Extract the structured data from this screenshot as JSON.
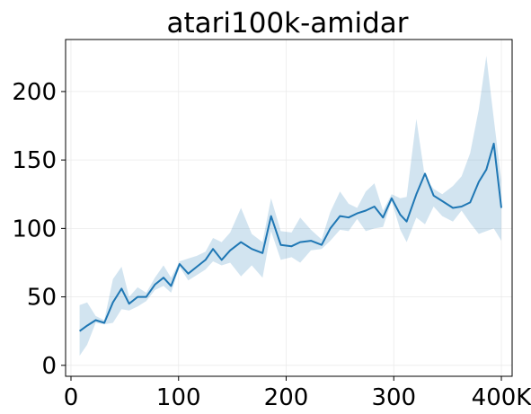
{
  "chart_data": {
    "type": "line",
    "title": "atari100k-amidar",
    "xlabel": "",
    "ylabel": "",
    "xlim": [
      -5,
      410
    ],
    "ylim": [
      -8,
      238
    ],
    "grid": true,
    "legend": "none",
    "x_ticks": [
      0,
      100,
      200,
      300,
      400
    ],
    "x_tick_labels": [
      "0",
      "100",
      "200",
      "300",
      "400K"
    ],
    "y_ticks": [
      0,
      50,
      100,
      150,
      200
    ],
    "y_tick_labels": [
      "0",
      "50",
      "100",
      "150",
      "200"
    ],
    "color": "#1f77b4",
    "x": [
      8,
      15,
      23,
      31,
      39,
      47,
      54,
      62,
      70,
      78,
      86,
      93,
      101,
      109,
      117,
      125,
      132,
      140,
      148,
      158,
      168,
      178,
      186,
      195,
      205,
      213,
      223,
      233,
      241,
      250,
      258,
      266,
      274,
      282,
      290,
      298,
      306,
      312,
      321,
      329,
      337,
      345,
      355,
      363,
      371,
      379,
      386,
      393,
      400
    ],
    "series": [
      {
        "mean": [
          25,
          29,
          33,
          31,
          46,
          56,
          45,
          50,
          50,
          59,
          64,
          58,
          74,
          67,
          72,
          77,
          85,
          77,
          84,
          90,
          85,
          82,
          109,
          88,
          87,
          90,
          91,
          88,
          100,
          109,
          108,
          111,
          113,
          116,
          108,
          122,
          110,
          105,
          125,
          140,
          124,
          120,
          115,
          116,
          119,
          134,
          143,
          162,
          115
        ],
        "upper": [
          44,
          46,
          36,
          33,
          63,
          72,
          50,
          57,
          53,
          64,
          73,
          64,
          76,
          78,
          80,
          83,
          93,
          90,
          97,
          115,
          96,
          90,
          122,
          98,
          97,
          108,
          99,
          92,
          112,
          127,
          118,
          115,
          127,
          133,
          113,
          125,
          122,
          123,
          180,
          137,
          129,
          125,
          131,
          138,
          155,
          187,
          226,
          180,
          135
        ],
        "lower": [
          7,
          15,
          31,
          30,
          31,
          41,
          40,
          43,
          47,
          55,
          58,
          53,
          72,
          62,
          66,
          70,
          76,
          73,
          75,
          65,
          73,
          64,
          98,
          77,
          79,
          75,
          84,
          85,
          91,
          99,
          98,
          107,
          98,
          100,
          101,
          120,
          99,
          90,
          108,
          103,
          116,
          109,
          105,
          113,
          104,
          96,
          98,
          100,
          91
        ]
      }
    ]
  }
}
